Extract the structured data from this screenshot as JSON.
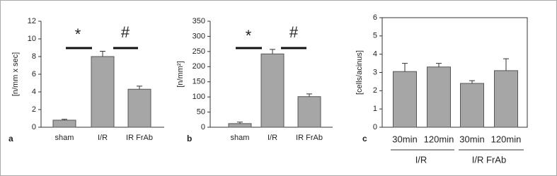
{
  "chart_data": [
    {
      "type": "bar",
      "panel_label": "a",
      "y_label": "[n/mm x sec]",
      "categories": [
        "sham",
        "I/R",
        "IR FrAb"
      ],
      "values": [
        0.8,
        8.0,
        4.3
      ],
      "errors": [
        0.1,
        0.6,
        0.35
      ],
      "color": "#a6a6a6",
      "ylim": [
        0,
        12
      ],
      "yticks": [
        0,
        2,
        4,
        6,
        8,
        10,
        12
      ],
      "annotations": [
        "*",
        "#"
      ]
    },
    {
      "type": "bar",
      "panel_label": "b",
      "y_label": "[n/mm²]",
      "categories": [
        "sham",
        "I/R",
        "IR FrAb"
      ],
      "values": [
        12,
        242,
        101
      ],
      "errors": [
        5,
        15,
        9
      ],
      "color": "#a6a6a6",
      "ylim": [
        0,
        350
      ],
      "yticks": [
        0,
        50,
        100,
        150,
        200,
        250,
        300,
        350
      ],
      "annotations": [
        "*",
        "#"
      ]
    },
    {
      "type": "bar",
      "panel_label": "c",
      "y_label": "[cells/acinus]",
      "categories": [
        "30min",
        "120min",
        "30min",
        "120min"
      ],
      "groups": [
        "I/R",
        "I/R FrAb"
      ],
      "values": [
        3.05,
        3.3,
        2.4,
        3.1
      ],
      "errors": [
        0.45,
        0.2,
        0.15,
        0.65
      ],
      "color": "#a6a6a6",
      "ylim": [
        0,
        6
      ],
      "yticks": [
        0,
        1,
        2,
        3,
        4,
        5,
        6
      ]
    }
  ]
}
